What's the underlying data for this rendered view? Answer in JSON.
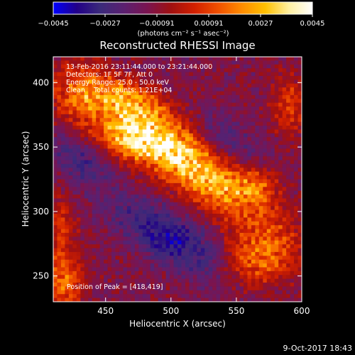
{
  "colorbar": {
    "tick_labels": [
      "−0.0045",
      "−0.0027",
      "−0.00091",
      "0.00091",
      "0.0027",
      "0.0045"
    ],
    "range": [
      -0.0045,
      0.0045
    ],
    "units_label": "(photons cm⁻² s⁻¹ asec⁻²)",
    "colormap": [
      "#0000ff",
      "#220088",
      "#3b2a7a",
      "#5b2070",
      "#7a1450",
      "#a01010",
      "#d22000",
      "#f05000",
      "#ff8c00",
      "#ffc000",
      "#fff0a0",
      "#ffffff"
    ]
  },
  "chart_data": {
    "type": "heatmap",
    "title": "Reconstructed RHESSI Image",
    "xlabel": "Heliocentric X (arcsec)",
    "ylabel": "Heliocentric Y (arcsec)",
    "xlim": [
      410,
      600
    ],
    "ylim": [
      230,
      420
    ],
    "x_ticks": [
      450,
      500,
      550,
      600
    ],
    "y_ticks": [
      250,
      300,
      350,
      400
    ],
    "annotations": [
      "13-Feb-2016 23:11:44.000 to 23:21:44.000",
      "Detectors: 1F 5F 7F, Att 0",
      "Energy Range: 25.0 - 50.0 keV",
      "Clean    Total counts: 1.21E+04"
    ],
    "peak_label": "Position of Peak = [418,419]",
    "grid": false
  },
  "footer": {
    "date": "9-Oct-2017 18:43"
  }
}
